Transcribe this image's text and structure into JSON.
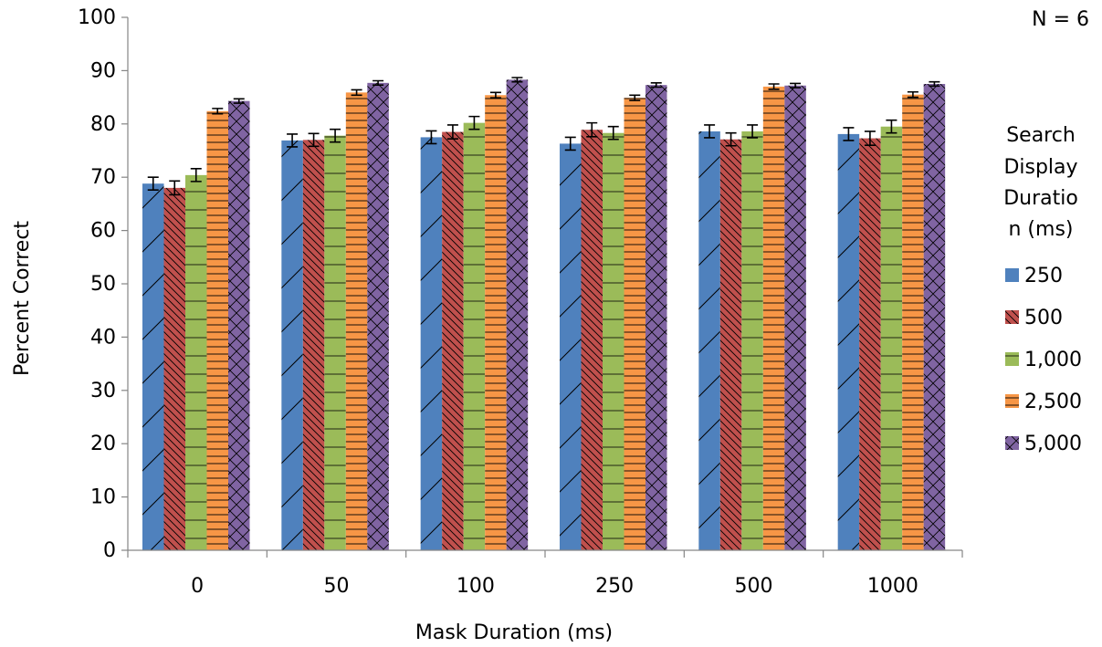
{
  "chart_data": {
    "type": "bar",
    "title": "",
    "annotation": "N = 6",
    "xlabel": "Mask Duration (ms)",
    "ylabel": "Percent Correct",
    "ylim": [
      0,
      100
    ],
    "yticks": [
      "0",
      "10",
      "20",
      "30",
      "40",
      "50",
      "60",
      "70",
      "80",
      "90",
      "100"
    ],
    "grid": false,
    "legend_position": "right",
    "legend_title_lines": [
      "Search",
      "Display",
      "Duratio",
      "n (ms)"
    ],
    "categories": [
      "0",
      "50",
      "100",
      "250",
      "500",
      "1000"
    ],
    "series": [
      {
        "name": "250",
        "color": "#4f81bd",
        "pattern": "diagonal-up",
        "values": [
          68.8,
          76.9,
          77.5,
          76.3,
          78.6,
          78.1
        ],
        "errors": [
          1.2,
          1.2,
          1.2,
          1.2,
          1.2,
          1.2
        ]
      },
      {
        "name": "500",
        "color": "#c0504d",
        "pattern": "diagonal-down-dense",
        "values": [
          68.0,
          77.0,
          78.5,
          78.9,
          77.1,
          77.3
        ],
        "errors": [
          1.3,
          1.2,
          1.3,
          1.3,
          1.2,
          1.3
        ]
      },
      {
        "name": "1,000",
        "color": "#9bbb59",
        "pattern": "horizontal-lines",
        "values": [
          70.4,
          77.8,
          80.2,
          78.3,
          78.6,
          79.5
        ],
        "errors": [
          1.2,
          1.2,
          1.2,
          1.2,
          1.2,
          1.2
        ]
      },
      {
        "name": "2,500",
        "color": "#f79646",
        "pattern": "horizontal-lines-dense",
        "values": [
          82.4,
          85.9,
          85.4,
          84.9,
          87.0,
          85.5
        ],
        "errors": [
          0.5,
          0.5,
          0.5,
          0.5,
          0.5,
          0.5
        ]
      },
      {
        "name": "5,000",
        "color": "#8064a2",
        "pattern": "crosshatch",
        "values": [
          84.3,
          87.7,
          88.3,
          87.3,
          87.2,
          87.5
        ],
        "errors": [
          0.4,
          0.4,
          0.4,
          0.4,
          0.4,
          0.4
        ]
      }
    ]
  }
}
